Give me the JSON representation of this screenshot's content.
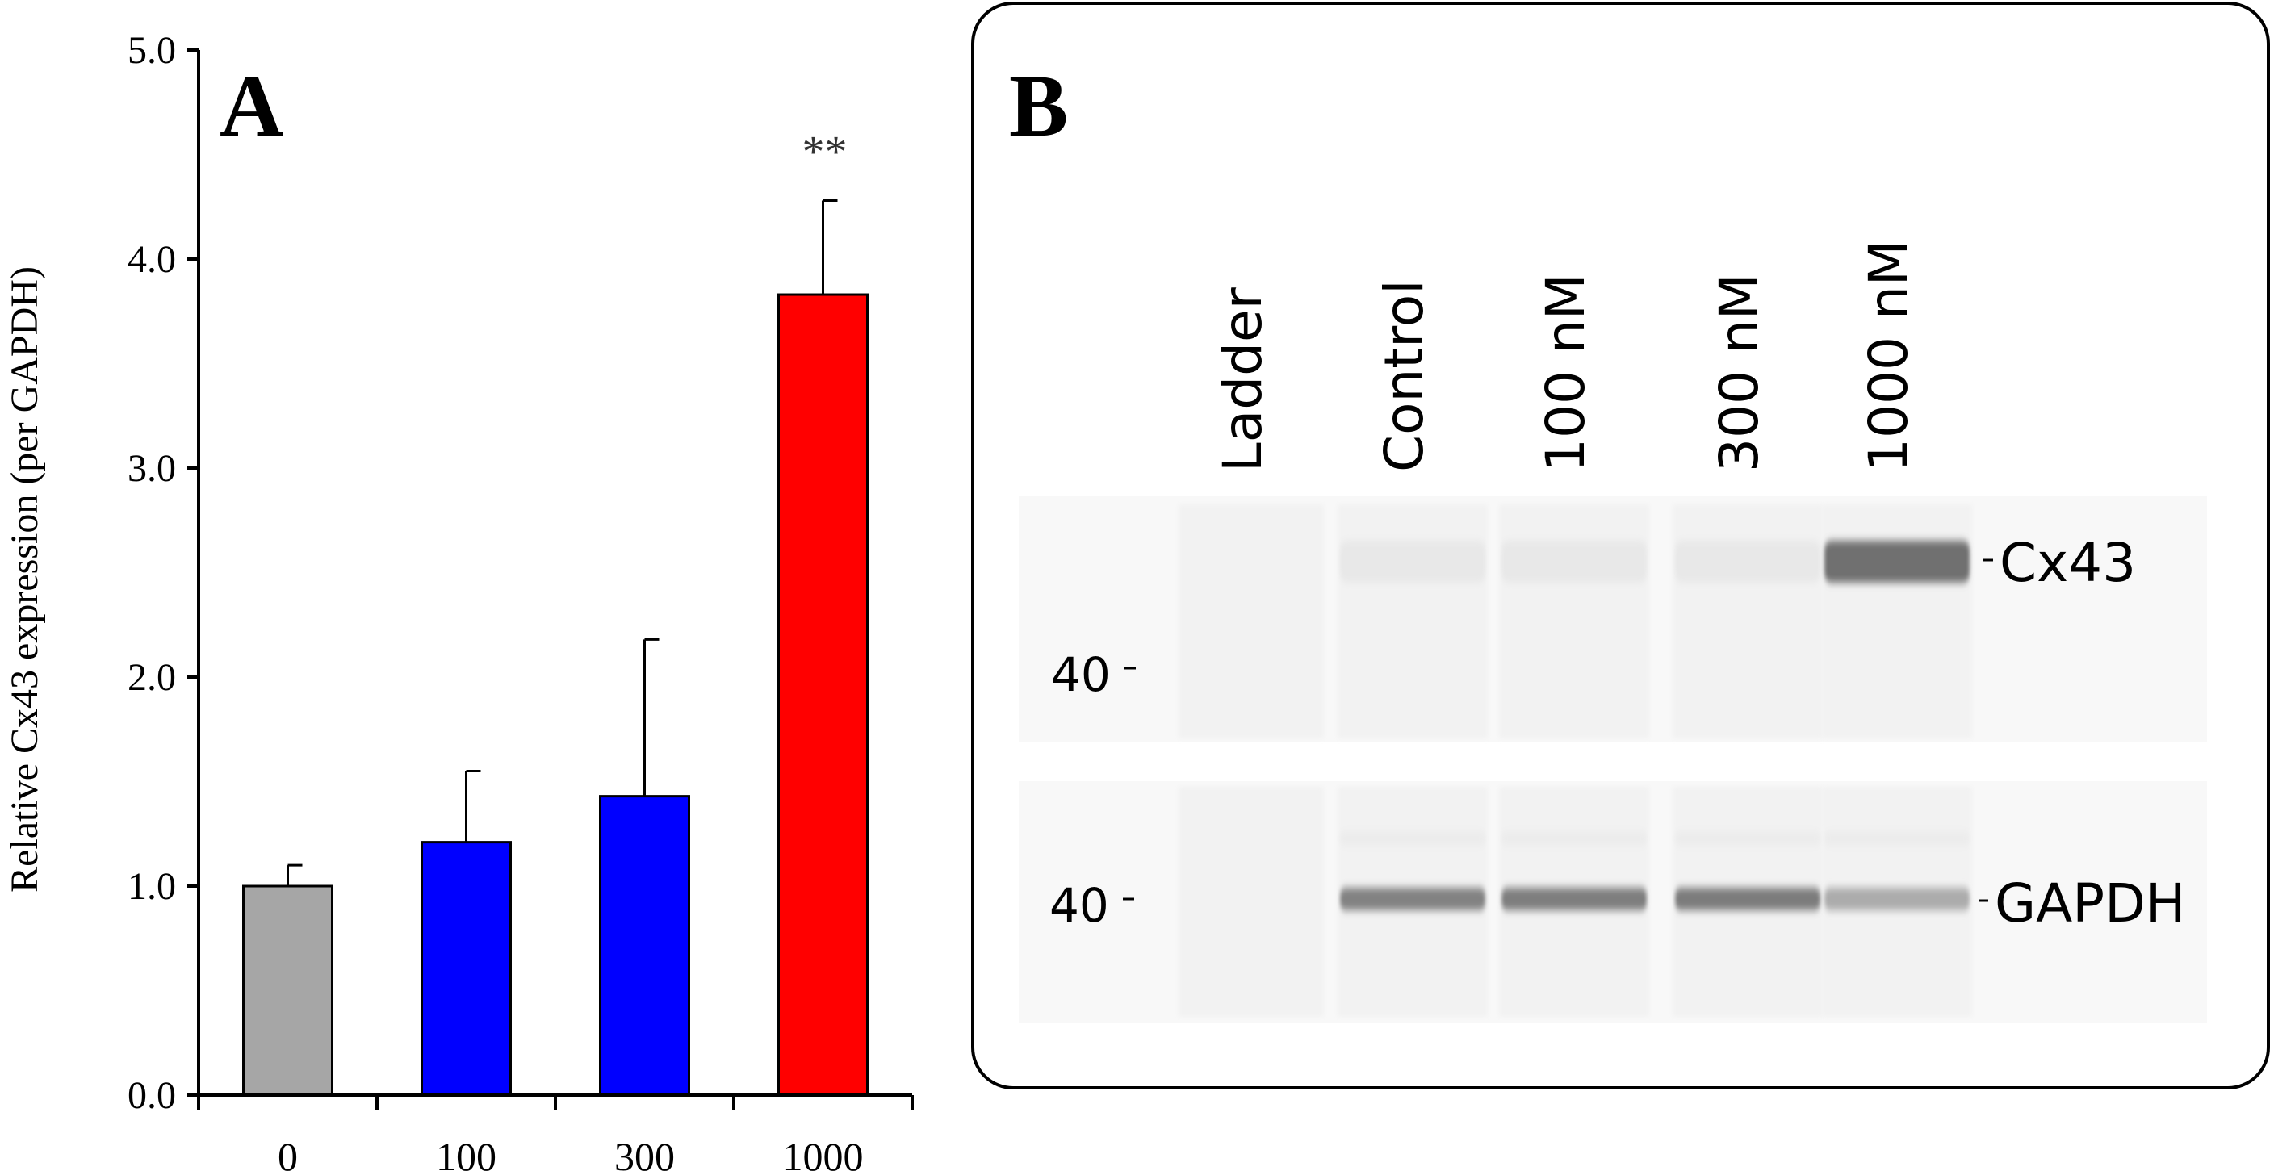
{
  "panel_a": {
    "letter": "A",
    "chart_data": {
      "type": "bar",
      "categories": [
        "0",
        "100",
        "300",
        "1000"
      ],
      "values": [
        1.0,
        1.21,
        1.43,
        3.83
      ],
      "errors": [
        0.1,
        0.34,
        0.75,
        0.45
      ],
      "colors": [
        "#a6a6a6",
        "#0000ff",
        "#0000ff",
        "#ff0000"
      ],
      "ylabel": "Relative  Cx43 expression (per GAPDH)",
      "xlabel": "",
      "ylim": [
        0,
        5
      ],
      "yticks": [
        "0.0",
        "1.0",
        "2.0",
        "3.0",
        "4.0",
        "5.0"
      ],
      "annotations": [
        {
          "category": "1000",
          "text": "**"
        }
      ]
    }
  },
  "panel_b": {
    "letter": "B",
    "lanes": [
      "Ladder",
      "Control",
      "100 nM",
      "300 nM",
      "1000 nM"
    ],
    "markers": [
      "40",
      "40"
    ],
    "bands": [
      "Cx43",
      "GAPDH"
    ],
    "cx43_intensity": [
      0,
      0.05,
      0.05,
      0.05,
      0.8
    ],
    "gapdh_intensity": [
      0,
      0.75,
      0.78,
      0.8,
      0.45
    ]
  }
}
